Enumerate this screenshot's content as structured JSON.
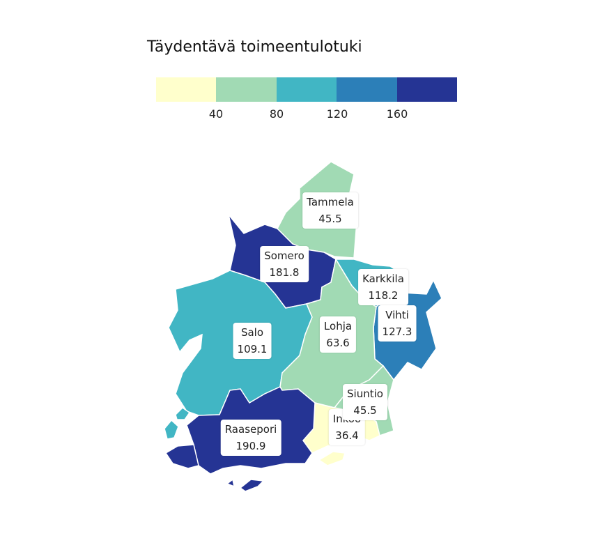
{
  "legend": {
    "title": "Täydentävä toimeentulotuki",
    "colors": [
      "#ffffcc",
      "#a1dab4",
      "#41b6c4",
      "#2c7fb8",
      "#253494"
    ],
    "ticks": [
      "40",
      "80",
      "120",
      "160"
    ]
  },
  "regions": [
    {
      "name": "Tammela",
      "value": "45.5",
      "color": "#a1dab4"
    },
    {
      "name": "Somero",
      "value": "181.8",
      "color": "#253494"
    },
    {
      "name": "Karkkila",
      "value": "118.2",
      "color": "#41b6c4"
    },
    {
      "name": "Vihti",
      "value": "127.3",
      "color": "#2c7fb8"
    },
    {
      "name": "Salo",
      "value": "109.1",
      "color": "#41b6c4"
    },
    {
      "name": "Lohja",
      "value": "63.6",
      "color": "#a1dab4"
    },
    {
      "name": "Siuntio",
      "value": "45.5",
      "color": "#a1dab4"
    },
    {
      "name": "Inkoo",
      "value": "36.4",
      "color": "#ffffcc"
    },
    {
      "name": "Raasepori",
      "value": "190.9",
      "color": "#253494"
    }
  ]
}
